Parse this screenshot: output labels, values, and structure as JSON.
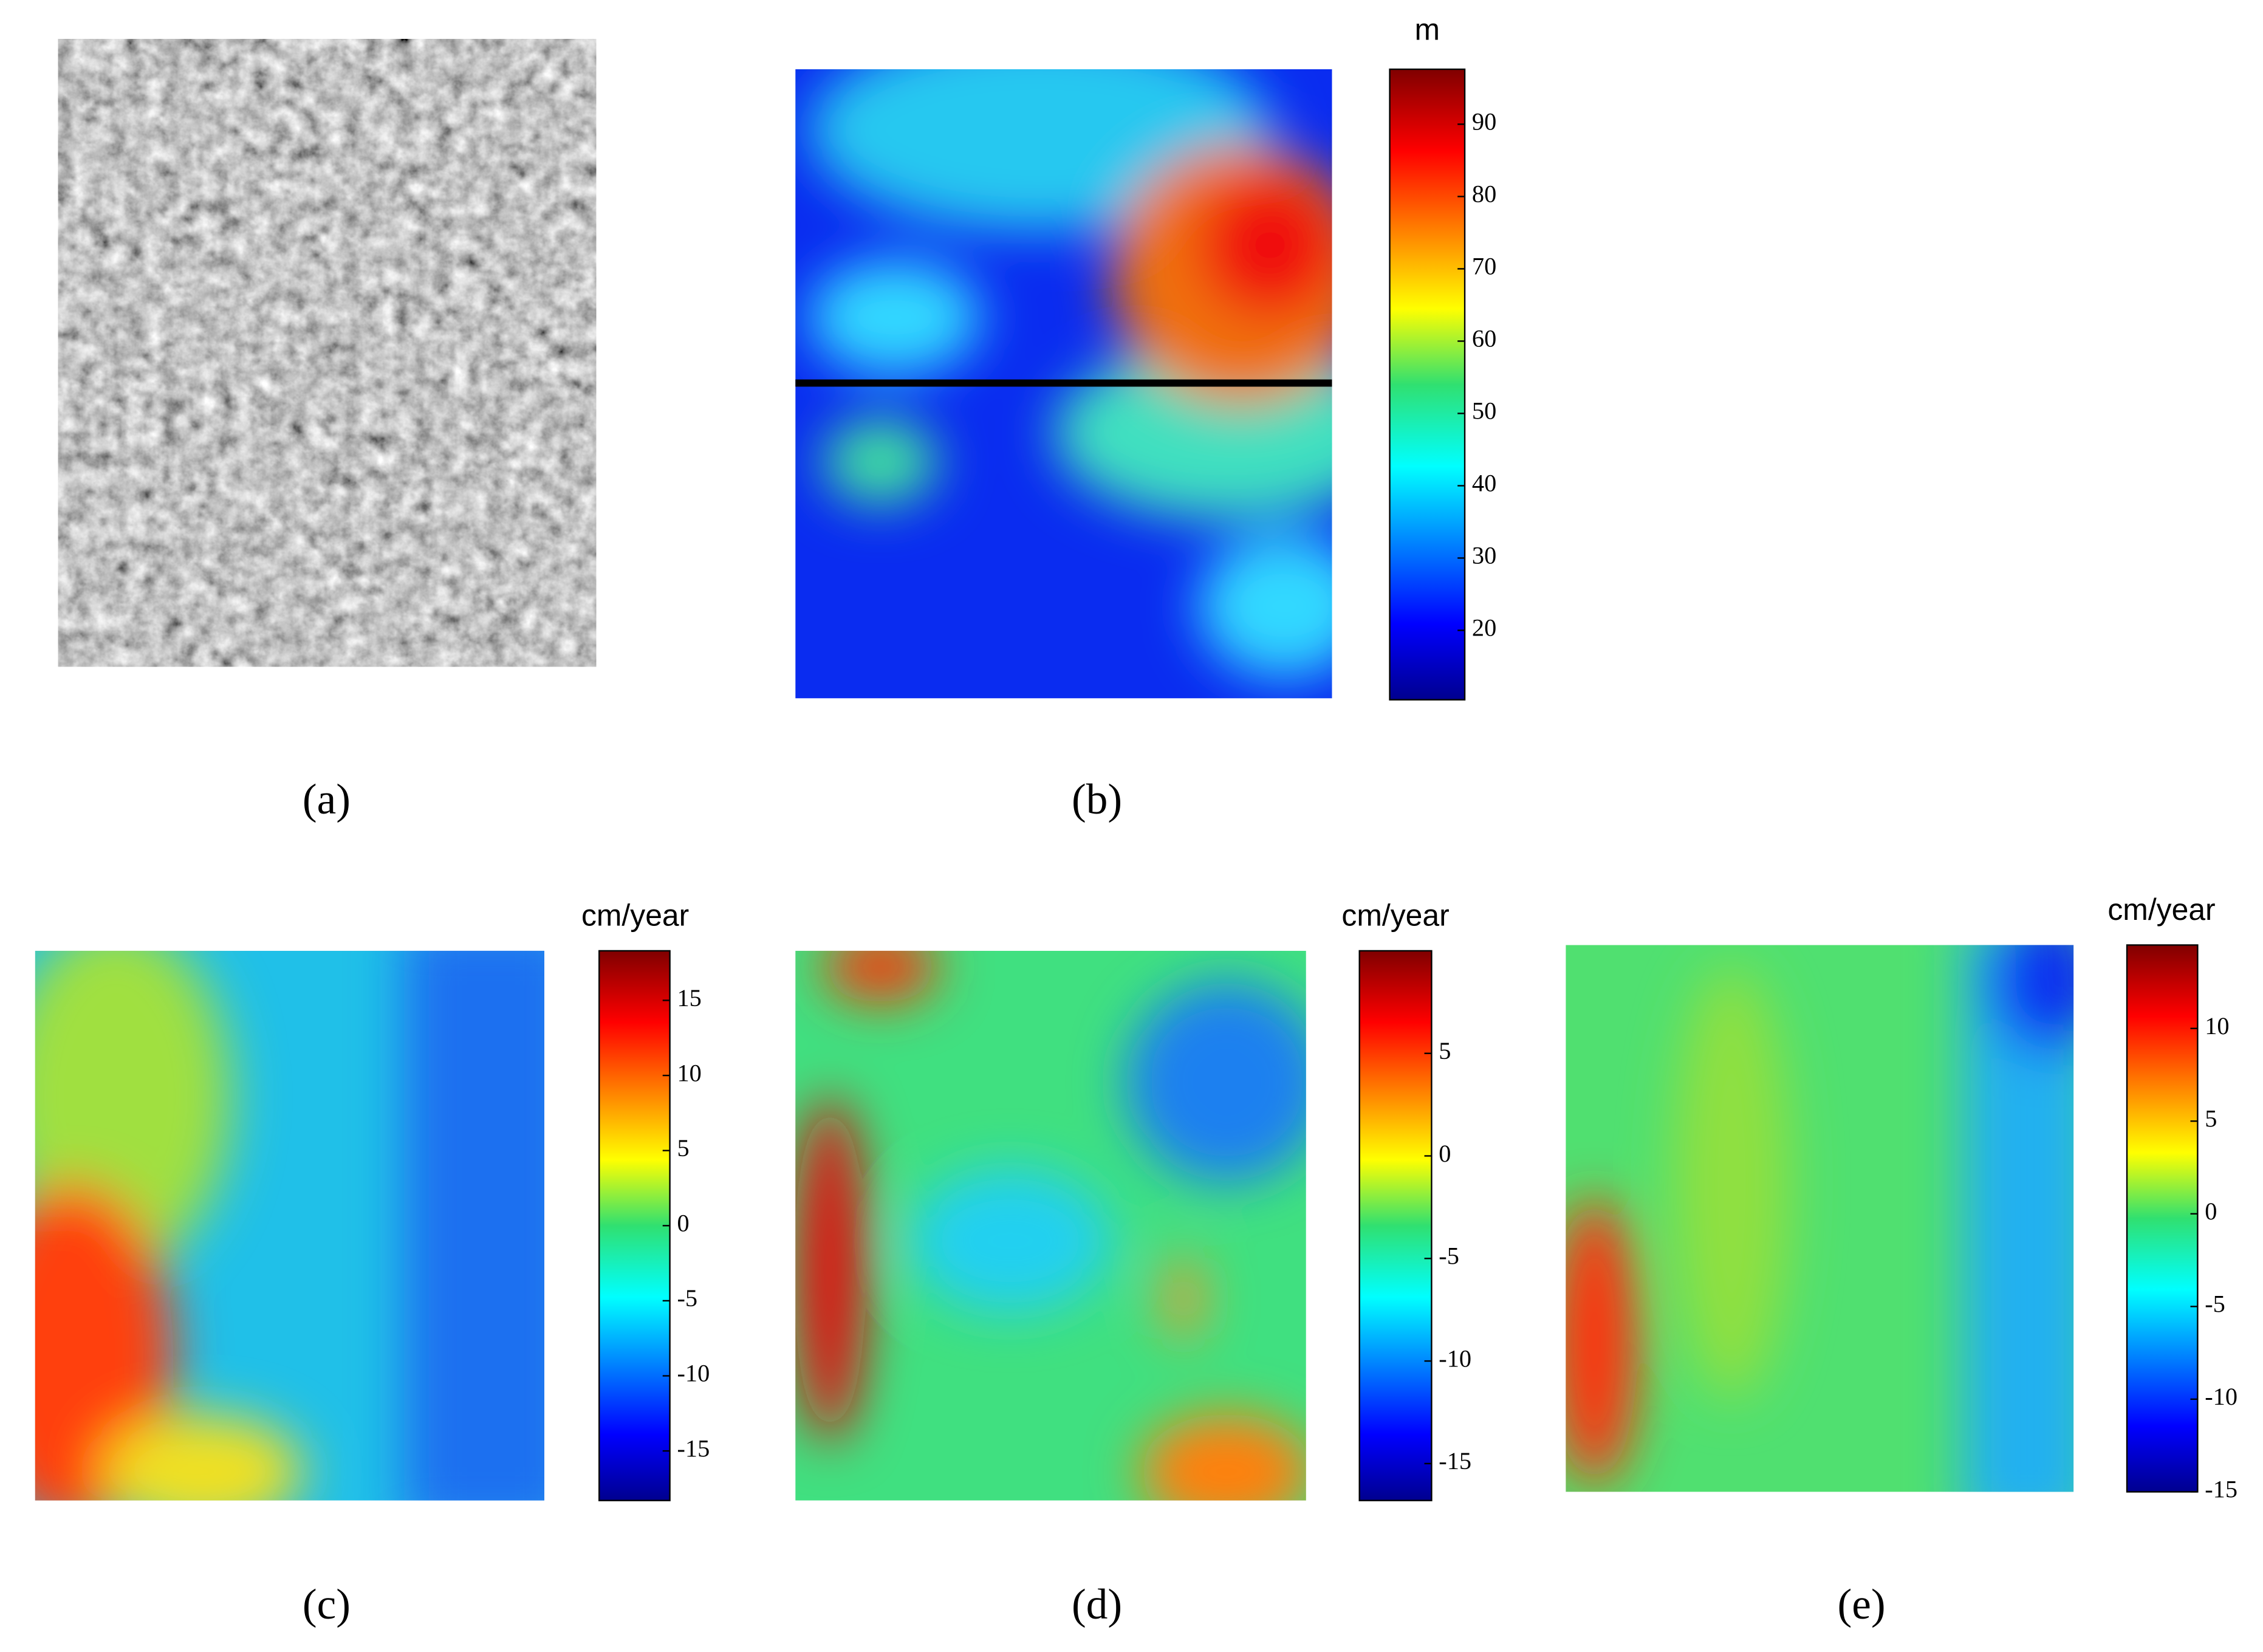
{
  "panels": [
    {
      "label": "(a)"
    },
    {
      "label": "(b)",
      "colorbar": {
        "unit": "m",
        "lim": [
          10.4,
          97.6
        ],
        "ticks": [
          20,
          30,
          40,
          50,
          60,
          70,
          80,
          90
        ]
      }
    },
    {
      "label": "(c)",
      "colorbar": {
        "unit": "cm/year",
        "lim": [
          -18.3,
          18.3
        ],
        "ticks": [
          -15,
          -10,
          -5,
          0,
          5,
          10,
          15
        ]
      }
    },
    {
      "label": "(d)",
      "colorbar": {
        "unit": "cm/year",
        "lim": [
          -16.8,
          10
        ],
        "ticks": [
          -15,
          -10,
          -5,
          0,
          5
        ]
      }
    },
    {
      "label": "(e)",
      "colorbar": {
        "unit": "cm/year",
        "lim": [
          -15,
          14.5
        ],
        "ticks": [
          -15,
          -10,
          -5,
          0,
          5,
          10
        ]
      }
    }
  ]
}
